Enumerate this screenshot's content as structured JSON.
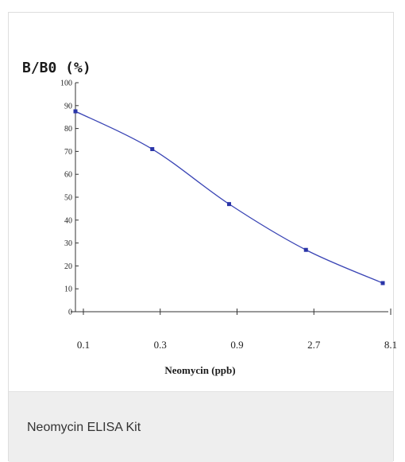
{
  "caption": "Neomycin ELISA Kit",
  "chart_data": {
    "type": "line",
    "ylabel": "B/B0 (%)",
    "xlabel": "Neomycin (ppb)",
    "categories": [
      "0.1",
      "0.3",
      "0.9",
      "2.7",
      "8.1"
    ],
    "values": [
      87.5,
      71,
      47,
      27,
      12.5
    ],
    "ylim": [
      0,
      100
    ],
    "yticks": [
      "0",
      "10",
      "20",
      "30",
      "40",
      "50",
      "60",
      "70",
      "80",
      "90",
      "100"
    ],
    "x_scale": "log",
    "grid": false,
    "line_color": "#3a45b5",
    "marker_color": "#2a35a8"
  }
}
